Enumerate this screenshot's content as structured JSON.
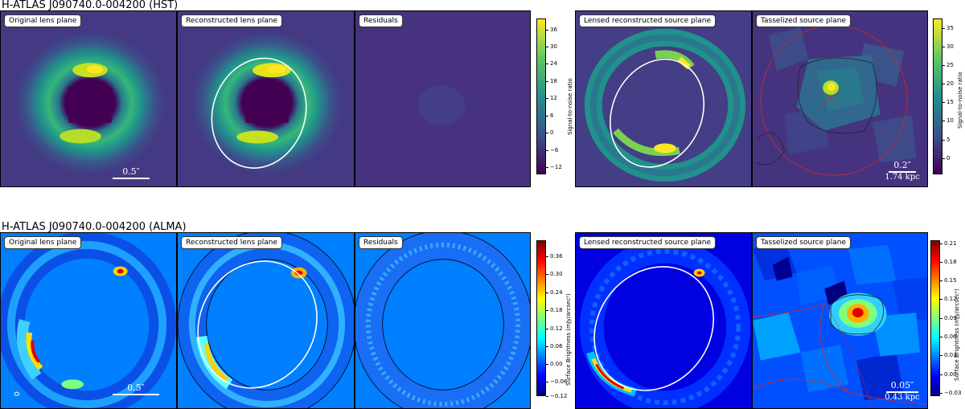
{
  "chart_data": [
    {
      "type": "heatmap",
      "title": "H-ATLAS J090740.0-004200 (HST)",
      "panels": [
        {
          "label": "Original lens plane",
          "scale_bar": "0.5″"
        },
        {
          "label": "Reconstructed lens plane"
        },
        {
          "label": "Residuals"
        }
      ],
      "colorbar": {
        "label": "Signal-to-noise ratio",
        "ticks": [
          "36",
          "30",
          "24",
          "18",
          "12",
          "6",
          "0",
          "−6",
          "−12"
        ],
        "range": [
          -15,
          39
        ],
        "colormap": "viridis"
      }
    },
    {
      "type": "heatmap",
      "title": "",
      "panels": [
        {
          "label": "Lensed reconstructed source plane"
        },
        {
          "label": "Tasselized source plane",
          "scale_bar": "0.2″",
          "scale_sub": "1.74 kpc"
        }
      ],
      "colorbar": {
        "label": "Signal-to-noise ratio",
        "ticks": [
          "35",
          "30",
          "25",
          "20",
          "15",
          "10",
          "5",
          "0"
        ],
        "range": [
          -4,
          37
        ],
        "colormap": "viridis"
      }
    },
    {
      "type": "heatmap",
      "title": "H-ATLAS J090740.0-004200 (ALMA)",
      "panels": [
        {
          "label": "Original lens plane",
          "scale_bar": "0.5″"
        },
        {
          "label": "Reconstructed lens plane"
        },
        {
          "label": "Residuals"
        }
      ],
      "colorbar": {
        "label": "Surface Brightness (mJy/arcsec²)",
        "ticks": [
          "0.36",
          "0.30",
          "0.24",
          "0.18",
          "0.12",
          "0.06",
          "0.00",
          "−0.06",
          "−0.12"
        ],
        "range": [
          -0.13,
          0.39
        ],
        "colormap": "jet"
      }
    },
    {
      "type": "heatmap",
      "title": "",
      "panels": [
        {
          "label": "Lensed reconstructed source plane"
        },
        {
          "label": "Tasselized source plane",
          "scale_bar": "0.05″",
          "scale_sub": "0.43 kpc"
        }
      ],
      "colorbar": {
        "label": "Surface Brightness (mJy/arcsec²)",
        "ticks": [
          "0.21",
          "0.18",
          "0.15",
          "0.12",
          "0.09",
          "0.06",
          "0.03",
          "0.00",
          "−0.03"
        ],
        "range": [
          -0.035,
          0.215
        ],
        "colormap": "jet"
      }
    }
  ],
  "colors": {
    "viridis_low": "#440154",
    "viridis_mid": "#21918c",
    "viridis_high": "#fde725",
    "jet_low": "#00007f",
    "jet_mid": "#7fff7f",
    "jet_high": "#7f0000",
    "critical_curve": "#ffffff",
    "caustic": "#d62728"
  }
}
